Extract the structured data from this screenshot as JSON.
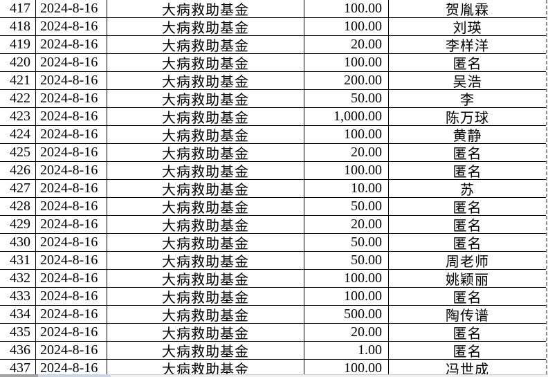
{
  "table": {
    "fund_name": "大病救助基金",
    "date": "2024-8-16",
    "rows": [
      {
        "no": "417",
        "date": "2024-8-16",
        "fund": "大病救助基金",
        "amount": "100.00",
        "donor": "贺胤霖"
      },
      {
        "no": "418",
        "date": "2024-8-16",
        "fund": "大病救助基金",
        "amount": "100.00",
        "donor": "刘瑛"
      },
      {
        "no": "419",
        "date": "2024-8-16",
        "fund": "大病救助基金",
        "amount": "20.00",
        "donor": "李样洋"
      },
      {
        "no": "420",
        "date": "2024-8-16",
        "fund": "大病救助基金",
        "amount": "100.00",
        "donor": "匿名"
      },
      {
        "no": "421",
        "date": "2024-8-16",
        "fund": "大病救助基金",
        "amount": "200.00",
        "donor": "吴浩"
      },
      {
        "no": "422",
        "date": "2024-8-16",
        "fund": "大病救助基金",
        "amount": "50.00",
        "donor": "李"
      },
      {
        "no": "423",
        "date": "2024-8-16",
        "fund": "大病救助基金",
        "amount": "1,000.00",
        "donor": "陈万球"
      },
      {
        "no": "424",
        "date": "2024-8-16",
        "fund": "大病救助基金",
        "amount": "100.00",
        "donor": "黄静"
      },
      {
        "no": "425",
        "date": "2024-8-16",
        "fund": "大病救助基金",
        "amount": "20.00",
        "donor": "匿名"
      },
      {
        "no": "426",
        "date": "2024-8-16",
        "fund": "大病救助基金",
        "amount": "100.00",
        "donor": "匿名"
      },
      {
        "no": "427",
        "date": "2024-8-16",
        "fund": "大病救助基金",
        "amount": "10.00",
        "donor": "苏"
      },
      {
        "no": "428",
        "date": "2024-8-16",
        "fund": "大病救助基金",
        "amount": "50.00",
        "donor": "匿名"
      },
      {
        "no": "429",
        "date": "2024-8-16",
        "fund": "大病救助基金",
        "amount": "20.00",
        "donor": "匿名"
      },
      {
        "no": "430",
        "date": "2024-8-16",
        "fund": "大病救助基金",
        "amount": "50.00",
        "donor": "匿名"
      },
      {
        "no": "431",
        "date": "2024-8-16",
        "fund": "大病救助基金",
        "amount": "50.00",
        "donor": "周老师"
      },
      {
        "no": "432",
        "date": "2024-8-16",
        "fund": "大病救助基金",
        "amount": "100.00",
        "donor": "姚颖丽"
      },
      {
        "no": "433",
        "date": "2024-8-16",
        "fund": "大病救助基金",
        "amount": "100.00",
        "donor": "匿名"
      },
      {
        "no": "434",
        "date": "2024-8-16",
        "fund": "大病救助基金",
        "amount": "500.00",
        "donor": "陶传谱"
      },
      {
        "no": "435",
        "date": "2024-8-16",
        "fund": "大病救助基金",
        "amount": "20.00",
        "donor": "匿名"
      },
      {
        "no": "436",
        "date": "2024-8-16",
        "fund": "大病救助基金",
        "amount": "1.00",
        "donor": "匿名"
      },
      {
        "no": "437",
        "date": "2024-8-16",
        "fund": "大病救助基金",
        "amount": "100.00",
        "donor": "冯世成"
      }
    ]
  },
  "colors": {
    "grid_border": "#000000",
    "page_break_dash": "#8c8c8c",
    "bottom_seg1": "#a3a3a3",
    "bottom_seg2": "#ccd7e3",
    "bottom_seg3": "#f1f1f1"
  }
}
